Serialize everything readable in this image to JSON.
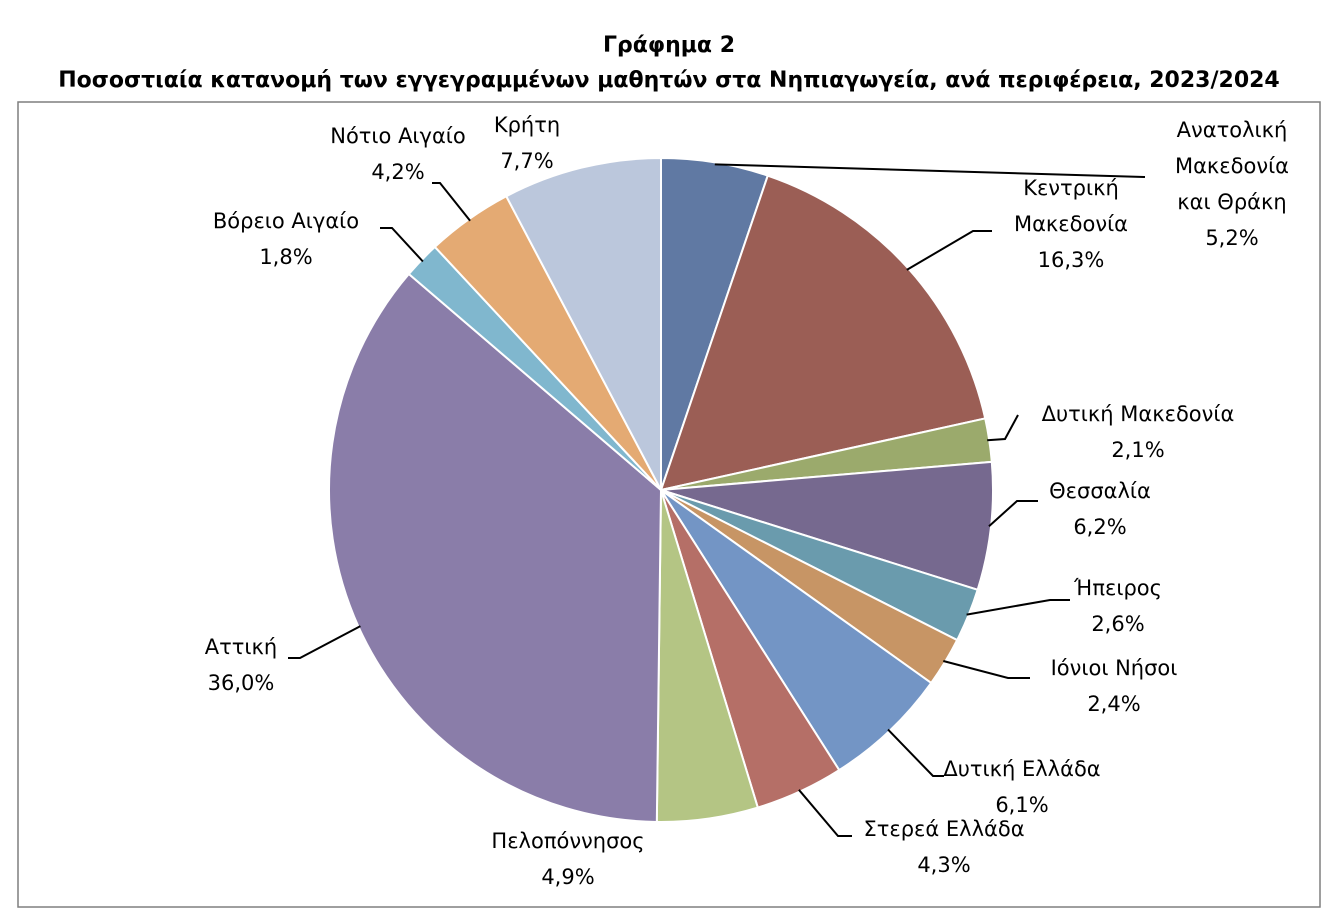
{
  "chart_data": {
    "type": "pie",
    "title": "Γράφημα 2",
    "subtitle": "Ποσοστιαία κατανομή των εγγεγραμμένων μαθητών στα Νηπιαγωγεία, ανά περιφέρεια, 2023/2024",
    "slices": [
      {
        "label": "Ανατολική Μακεδονία και Θράκη",
        "value": 5.2,
        "value_label": "5,2%",
        "color": "#6079A3"
      },
      {
        "label": "Κεντρική Μακεδονία",
        "value": 16.3,
        "value_label": "16,3%",
        "color": "#9B5E55"
      },
      {
        "label": "Δυτική Μακεδονία",
        "value": 2.1,
        "value_label": "2,1%",
        "color": "#9BAA6C"
      },
      {
        "label": "Θεσσαλία",
        "value": 6.2,
        "value_label": "6,2%",
        "color": "#76698F"
      },
      {
        "label": "Ήπειρος",
        "value": 2.6,
        "value_label": "2,6%",
        "color": "#6A9BAD"
      },
      {
        "label": "Ιόνιοι Νήσοι",
        "value": 2.4,
        "value_label": "2,4%",
        "color": "#C79565"
      },
      {
        "label": "Δυτική Ελλάδα",
        "value": 6.1,
        "value_label": "6,1%",
        "color": "#7395C5"
      },
      {
        "label": "Στερεά Ελλάδα",
        "value": 4.3,
        "value_label": "4,3%",
        "color": "#B56F67"
      },
      {
        "label": "Πελοπόννησος",
        "value": 4.9,
        "value_label": "4,9%",
        "color": "#B4C584"
      },
      {
        "label": "Αττική",
        "value": 36.0,
        "value_label": "36,0%",
        "color": "#8A7DA9"
      },
      {
        "label": "Βόρειο Αιγαίο",
        "value": 1.8,
        "value_label": "1,8%",
        "color": "#80B7CE"
      },
      {
        "label": "Νότιο Αιγαίο",
        "value": 4.2,
        "value_label": "4,2%",
        "color": "#E4AA73"
      },
      {
        "label": "Κρήτη",
        "value": 7.7,
        "value_label": "7,7%",
        "color": "#BBC7DC"
      }
    ],
    "legend": "none",
    "start_angle": "12 o'clock",
    "direction": "clockwise"
  },
  "label_lines": {
    "Ανατολική Μακεδονία και Θράκη": [
      "Ανατολική",
      "Μακεδονία",
      "και Θράκη",
      "5,2%"
    ],
    "Κεντρική Μακεδονία": [
      "Κεντρική",
      "Μακεδονία",
      "16,3%"
    ],
    "Δυτική Μακεδονία": [
      "Δυτική Μακεδονία",
      "2,1%"
    ],
    "Θεσσαλία": [
      "Θεσσαλία",
      "6,2%"
    ],
    "Ήπειρος": [
      "Ήπειρος",
      "2,6%"
    ],
    "Ιόνιοι Νήσοι": [
      "Ιόνιοι Νήσοι",
      "2,4%"
    ],
    "Δυτική Ελλάδα": [
      "Δυτική Ελλάδα",
      "6,1%"
    ],
    "Στερεά Ελλάδα": [
      "Στερεά Ελλάδα",
      "4,3%"
    ],
    "Πελοπόννησος": [
      "Πελοπόννησος",
      "4,9%"
    ],
    "Αττική": [
      "Αττική",
      "36,0%"
    ],
    "Βόρειο Αιγαίο": [
      "Βόρειο Αιγαίο",
      "1,8%"
    ],
    "Νότιο Αιγαίο": [
      "Νότιο Αιγαίο",
      "4,2%"
    ],
    "Κρήτη": [
      "Κρήτη",
      "7,7%"
    ]
  }
}
